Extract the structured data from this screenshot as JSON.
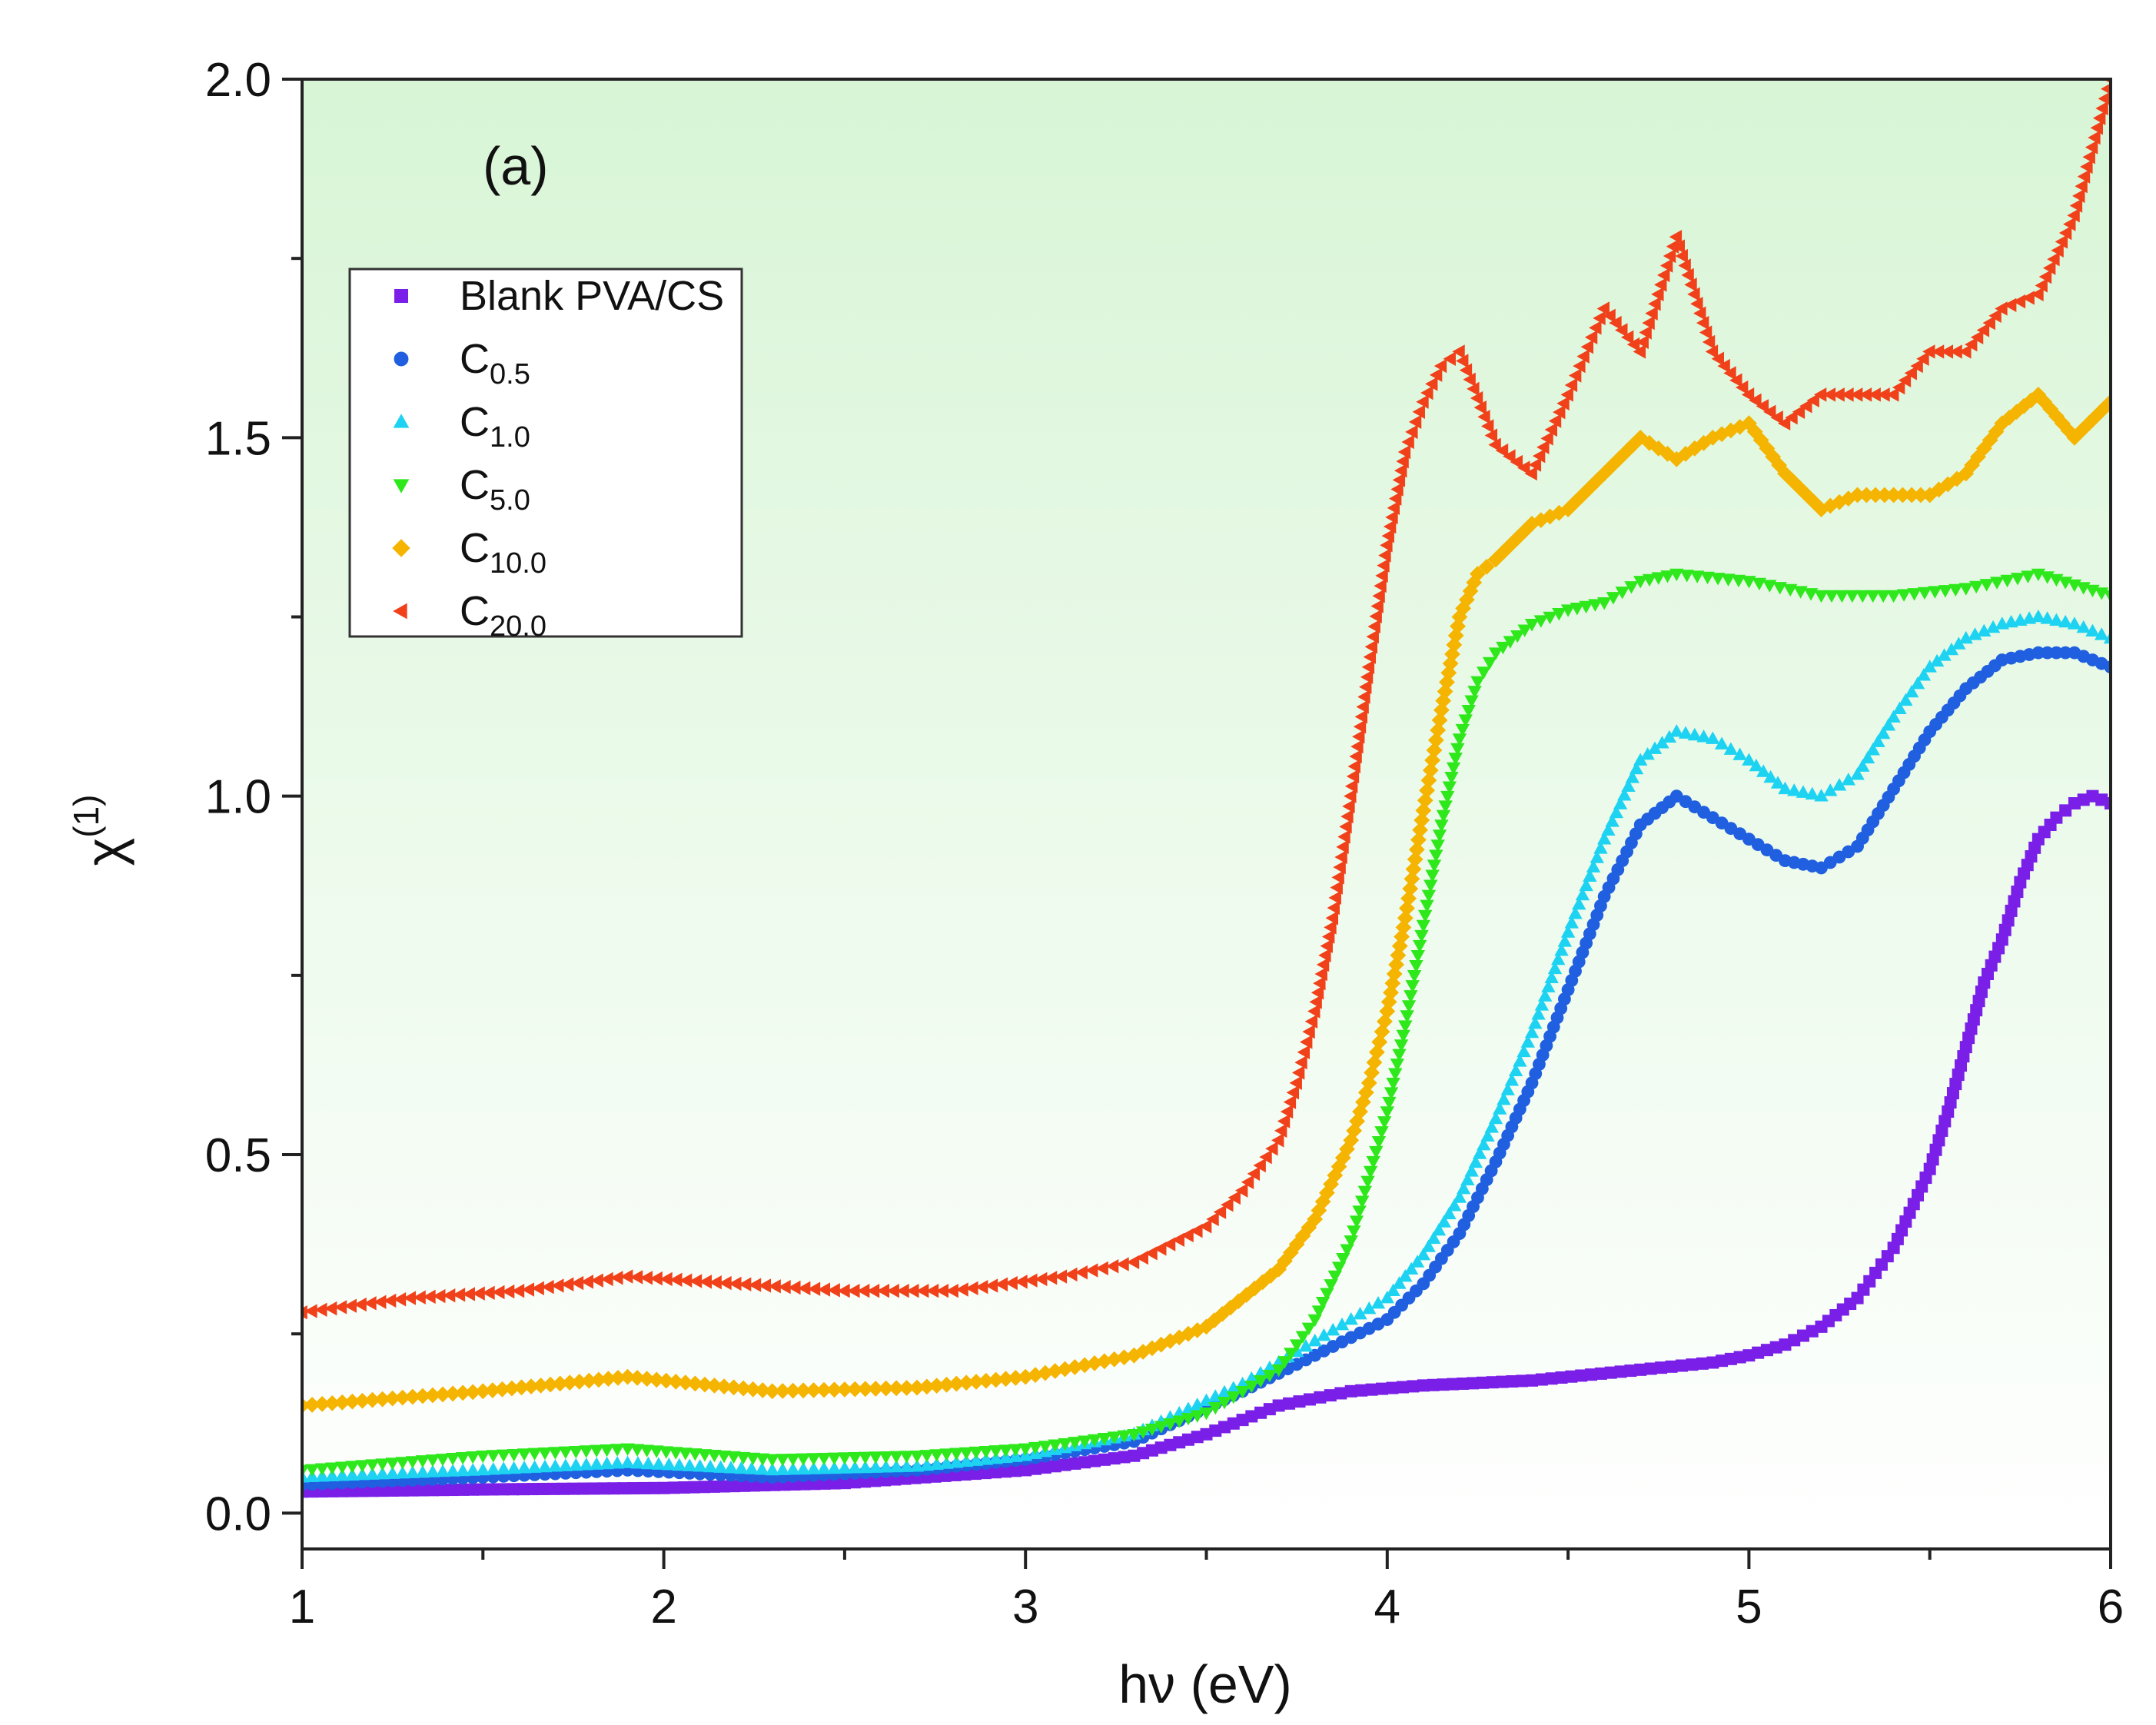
{
  "chart_data": {
    "type": "scatter",
    "panel_label": "(a)",
    "xlabel": "hν (eV)",
    "ylabel": {
      "base": "χ",
      "sup": "(1)"
    },
    "xlim": [
      1,
      6
    ],
    "ylim": [
      -0.05,
      2.0
    ],
    "xticks": [
      "1",
      "2",
      "3",
      "4",
      "5",
      "6"
    ],
    "yticks": [
      "0.0",
      "0.5",
      "1.0",
      "1.5",
      "2.0"
    ],
    "legend_position": "upper-left",
    "background": {
      "top": "#d8f5d6",
      "bottom": "#ffffff"
    },
    "series": [
      {
        "name": "Blank PVA/CS",
        "label_base": "Blank PVA/CS",
        "label_sub": "",
        "marker": "square",
        "color": "#7a1fe8",
        "x": [
          1.0,
          1.5,
          2.0,
          2.5,
          3.0,
          3.3,
          3.5,
          3.7,
          3.9,
          4.1,
          4.4,
          4.7,
          4.9,
          5.0,
          5.1,
          5.2,
          5.3,
          5.4,
          5.5,
          5.55,
          5.6,
          5.65,
          5.7,
          5.75,
          5.8,
          5.85,
          5.9,
          5.95,
          6.0
        ],
        "values": [
          0.03,
          0.033,
          0.035,
          0.042,
          0.06,
          0.08,
          0.11,
          0.15,
          0.17,
          0.178,
          0.185,
          0.2,
          0.21,
          0.22,
          0.235,
          0.26,
          0.3,
          0.37,
          0.48,
          0.56,
          0.65,
          0.74,
          0.8,
          0.88,
          0.94,
          0.97,
          0.99,
          1.0,
          0.99
        ]
      },
      {
        "name": "C0.5",
        "label_base": "C",
        "label_sub": "0.5",
        "marker": "circle",
        "color": "#1f5fe0",
        "x": [
          1.0,
          1.5,
          1.9,
          2.3,
          2.7,
          3.0,
          3.3,
          3.6,
          3.8,
          4.0,
          4.1,
          4.2,
          4.3,
          4.4,
          4.5,
          4.6,
          4.7,
          4.8,
          4.9,
          5.0,
          5.1,
          5.2,
          5.3,
          5.4,
          5.5,
          5.6,
          5.7,
          5.8,
          5.9,
          6.0
        ],
        "values": [
          0.04,
          0.05,
          0.06,
          0.05,
          0.06,
          0.075,
          0.1,
          0.17,
          0.22,
          0.27,
          0.32,
          0.39,
          0.49,
          0.6,
          0.73,
          0.86,
          0.96,
          1.0,
          0.97,
          0.94,
          0.91,
          0.9,
          0.93,
          1.01,
          1.09,
          1.15,
          1.19,
          1.2,
          1.2,
          1.18
        ]
      },
      {
        "name": "C1.0",
        "label_base": "C",
        "label_sub": "1.0",
        "marker": "triangle-up",
        "color": "#1ed3f2",
        "x": [
          1.0,
          1.5,
          1.9,
          2.3,
          2.7,
          3.0,
          3.3,
          3.6,
          3.8,
          4.0,
          4.1,
          4.2,
          4.3,
          4.4,
          4.5,
          4.6,
          4.7,
          4.8,
          4.9,
          5.0,
          5.1,
          5.2,
          5.3,
          5.4,
          5.5,
          5.6,
          5.7,
          5.8,
          5.9,
          6.0
        ],
        "values": [
          0.05,
          0.06,
          0.07,
          0.06,
          0.065,
          0.08,
          0.11,
          0.18,
          0.24,
          0.3,
          0.36,
          0.44,
          0.55,
          0.67,
          0.81,
          0.94,
          1.05,
          1.09,
          1.08,
          1.05,
          1.01,
          1.0,
          1.03,
          1.11,
          1.18,
          1.22,
          1.24,
          1.25,
          1.24,
          1.22
        ]
      },
      {
        "name": "C5.0",
        "label_base": "C",
        "label_sub": "5.0",
        "marker": "triangle-down",
        "color": "#2ee81c",
        "x": [
          1.0,
          1.5,
          1.9,
          2.3,
          2.7,
          3.0,
          3.3,
          3.5,
          3.7,
          3.8,
          3.9,
          4.0,
          4.05,
          4.1,
          4.15,
          4.2,
          4.25,
          4.3,
          4.4,
          4.5,
          4.6,
          4.7,
          4.8,
          5.0,
          5.2,
          5.4,
          5.6,
          5.8,
          6.0
        ],
        "values": [
          0.06,
          0.08,
          0.09,
          0.075,
          0.08,
          0.09,
          0.11,
          0.14,
          0.2,
          0.27,
          0.38,
          0.56,
          0.68,
          0.82,
          0.96,
          1.08,
          1.16,
          1.2,
          1.24,
          1.26,
          1.27,
          1.3,
          1.31,
          1.3,
          1.28,
          1.28,
          1.29,
          1.31,
          1.28
        ]
      },
      {
        "name": "C10.0",
        "label_base": "C",
        "label_sub": "10.0",
        "marker": "diamond",
        "color": "#f5b400",
        "x": [
          1.0,
          1.5,
          1.9,
          2.3,
          2.7,
          3.0,
          3.3,
          3.5,
          3.7,
          3.8,
          3.9,
          3.95,
          4.0,
          4.05,
          4.1,
          4.15,
          4.2,
          4.25,
          4.3,
          4.4,
          4.5,
          4.6,
          4.7,
          4.8,
          4.9,
          5.0,
          5.1,
          5.2,
          5.3,
          5.4,
          5.5,
          5.6,
          5.7,
          5.8,
          5.9,
          6.0
        ],
        "values": [
          0.15,
          0.17,
          0.19,
          0.17,
          0.175,
          0.19,
          0.22,
          0.26,
          0.34,
          0.41,
          0.52,
          0.6,
          0.7,
          0.83,
          0.98,
          1.12,
          1.25,
          1.31,
          1.33,
          1.38,
          1.4,
          1.45,
          1.5,
          1.47,
          1.5,
          1.52,
          1.45,
          1.4,
          1.42,
          1.42,
          1.42,
          1.45,
          1.52,
          1.56,
          1.5,
          1.55
        ]
      },
      {
        "name": "C20.0",
        "label_base": "C",
        "label_sub": "20.0",
        "marker": "triangle-left",
        "color": "#f0411a",
        "x": [
          1.0,
          1.3,
          1.6,
          1.9,
          2.2,
          2.5,
          2.8,
          3.1,
          3.3,
          3.5,
          3.6,
          3.7,
          3.75,
          3.8,
          3.85,
          3.9,
          3.95,
          4.0,
          4.05,
          4.1,
          4.15,
          4.2,
          4.3,
          4.4,
          4.5,
          4.6,
          4.7,
          4.8,
          4.9,
          5.0,
          5.1,
          5.2,
          5.3,
          5.4,
          5.5,
          5.6,
          5.7,
          5.8,
          5.9,
          6.0
        ],
        "values": [
          0.28,
          0.3,
          0.31,
          0.33,
          0.32,
          0.31,
          0.31,
          0.33,
          0.35,
          0.4,
          0.45,
          0.52,
          0.6,
          0.7,
          0.83,
          1.0,
          1.18,
          1.35,
          1.48,
          1.55,
          1.6,
          1.62,
          1.49,
          1.45,
          1.56,
          1.68,
          1.62,
          1.78,
          1.62,
          1.56,
          1.52,
          1.56,
          1.56,
          1.56,
          1.62,
          1.62,
          1.68,
          1.7,
          1.81,
          2.0
        ]
      }
    ]
  }
}
